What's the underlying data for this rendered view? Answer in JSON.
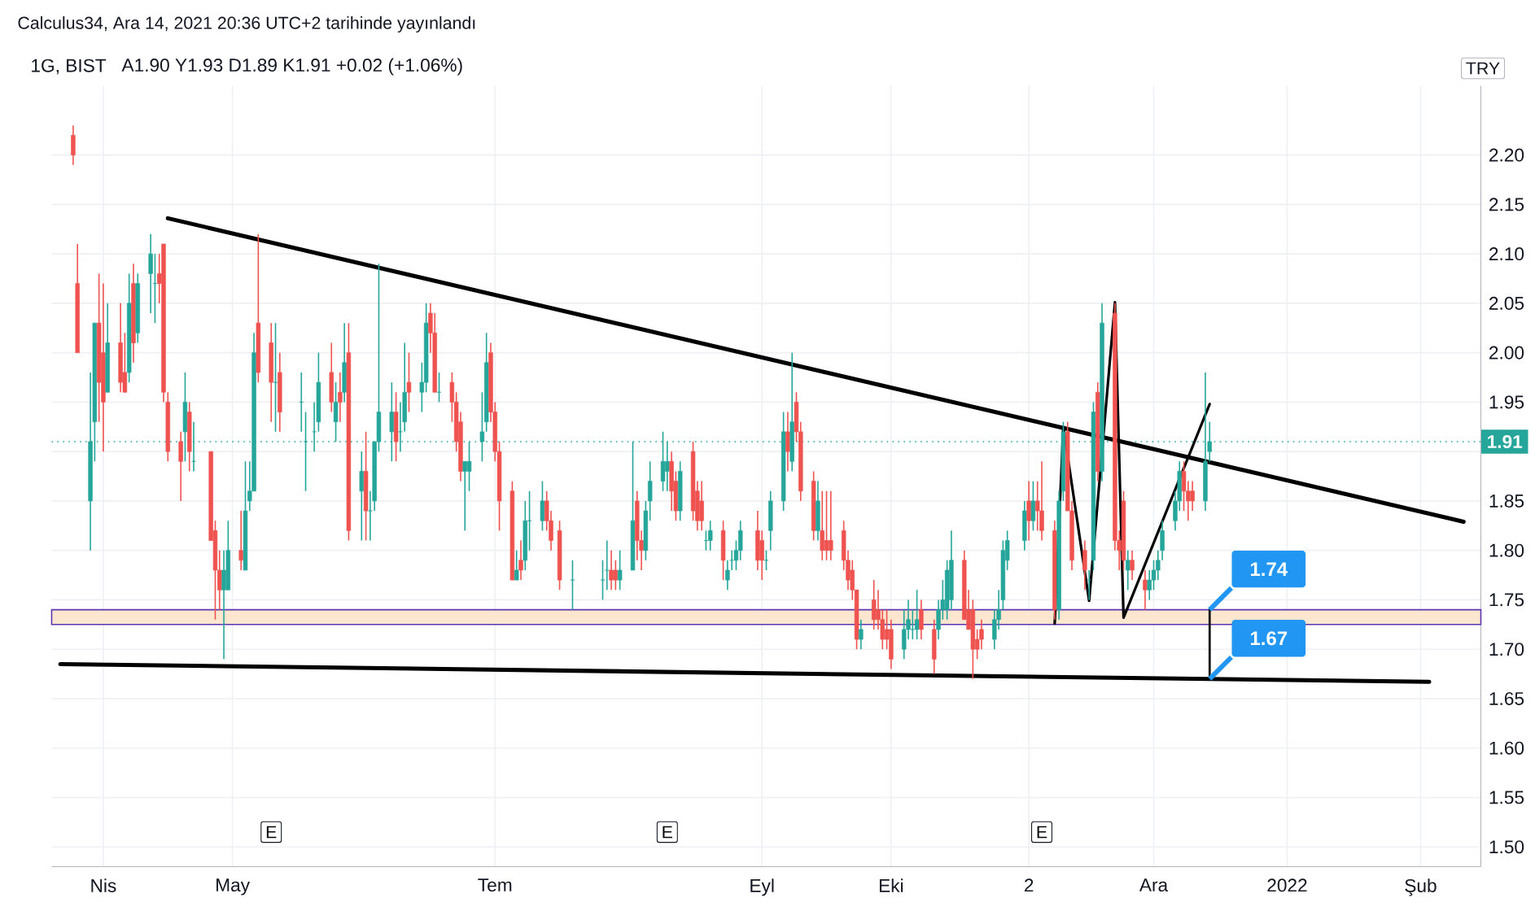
{
  "chart_data": {
    "type": "candlestick",
    "title": "1G, BIST",
    "subtitle": "A1.90 Y1.93 D1.89 K1.91 +0.02 (+1.06%)",
    "x": [
      "2021-03-25",
      "2021-03-26",
      "2021-03-29",
      "2021-03-30",
      "2021-03-31",
      "2021-04-01",
      "2021-04-02",
      "2021-04-05",
      "2021-04-06",
      "2021-04-07",
      "2021-04-08",
      "2021-04-09",
      "2021-04-12",
      "2021-04-13",
      "2021-04-14",
      "2021-04-15",
      "2021-04-16",
      "2021-04-19",
      "2021-04-20",
      "2021-04-21",
      "2021-04-22",
      "2021-04-26",
      "2021-04-27",
      "2021-04-28",
      "2021-04-29",
      "2021-04-30",
      "2021-05-03",
      "2021-05-04",
      "2021-05-05",
      "2021-05-06",
      "2021-05-07",
      "2021-05-10",
      "2021-05-11",
      "2021-05-12",
      "2021-05-17",
      "2021-05-18",
      "2021-05-20",
      "2021-05-21",
      "2021-05-24",
      "2021-05-25",
      "2021-05-26",
      "2021-05-27",
      "2021-05-28",
      "2021-05-31",
      "2021-06-01",
      "2021-06-02",
      "2021-06-03",
      "2021-06-04",
      "2021-06-07",
      "2021-06-08",
      "2021-06-09",
      "2021-06-10",
      "2021-06-11",
      "2021-06-14",
      "2021-06-15",
      "2021-06-16",
      "2021-06-17",
      "2021-06-18",
      "2021-06-21",
      "2021-06-22",
      "2021-06-23",
      "2021-06-24",
      "2021-06-25",
      "2021-06-28",
      "2021-06-29",
      "2021-06-30",
      "2021-07-01",
      "2021-07-02",
      "2021-07-05",
      "2021-07-06",
      "2021-07-07",
      "2021-07-08",
      "2021-07-09",
      "2021-07-12",
      "2021-07-13",
      "2021-07-14",
      "2021-07-16",
      "2021-07-19",
      "2021-07-26",
      "2021-07-27",
      "2021-07-28",
      "2021-07-29",
      "2021-07-30",
      "2021-08-02",
      "2021-08-03",
      "2021-08-04",
      "2021-08-05",
      "2021-08-06",
      "2021-08-09",
      "2021-08-10",
      "2021-08-11",
      "2021-08-12",
      "2021-08-13",
      "2021-08-16",
      "2021-08-17",
      "2021-08-18",
      "2021-08-19",
      "2021-08-20",
      "2021-08-23",
      "2021-08-24",
      "2021-08-25",
      "2021-08-26",
      "2021-08-27",
      "2021-08-31",
      "2021-09-01",
      "2021-09-02",
      "2021-09-03",
      "2021-09-06",
      "2021-09-07",
      "2021-09-08",
      "2021-09-09",
      "2021-09-10",
      "2021-09-13",
      "2021-09-14",
      "2021-09-15",
      "2021-09-16",
      "2021-09-17",
      "2021-09-20",
      "2021-09-21",
      "2021-09-22",
      "2021-09-23",
      "2021-09-24",
      "2021-09-27",
      "2021-09-28",
      "2021-09-29",
      "2021-09-30",
      "2021-10-01",
      "2021-10-04",
      "2021-10-05",
      "2021-10-06",
      "2021-10-07",
      "2021-10-08",
      "2021-10-11",
      "2021-10-12",
      "2021-10-13",
      "2021-10-14",
      "2021-10-15",
      "2021-10-18",
      "2021-10-19",
      "2021-10-20",
      "2021-10-21",
      "2021-10-22",
      "2021-10-25",
      "2021-10-26",
      "2021-10-27",
      "2021-10-28",
      "2021-11-01",
      "2021-11-02",
      "2021-11-03",
      "2021-11-04",
      "2021-11-05",
      "2021-11-08",
      "2021-11-09",
      "2021-11-10",
      "2021-11-11",
      "2021-11-12",
      "2021-11-15",
      "2021-11-16",
      "2021-11-17",
      "2021-11-18",
      "2021-11-19",
      "2021-11-22",
      "2021-11-23",
      "2021-11-24",
      "2021-11-25",
      "2021-11-26",
      "2021-11-29",
      "2021-11-30",
      "2021-12-01",
      "2021-12-02",
      "2021-12-03",
      "2021-12-06",
      "2021-12-07",
      "2021-12-08",
      "2021-12-09",
      "2021-12-10",
      "2021-12-13",
      "2021-12-14"
    ],
    "ohlc": [
      [
        2.22,
        2.23,
        2.19,
        2.2
      ],
      [
        2.07,
        2.11,
        2.0,
        2.0
      ],
      [
        1.85,
        1.98,
        1.8,
        1.91
      ],
      [
        1.93,
        2.03,
        1.89,
        2.03
      ],
      [
        2.03,
        2.08,
        1.93,
        1.97
      ],
      [
        2.0,
        2.07,
        1.9,
        1.95
      ],
      [
        1.96,
        2.05,
        1.96,
        2.01
      ],
      [
        2.01,
        2.05,
        1.96,
        1.97
      ],
      [
        1.98,
        2.02,
        1.96,
        1.96
      ],
      [
        1.98,
        2.08,
        1.97,
        2.05
      ],
      [
        2.07,
        2.09,
        1.99,
        2.01
      ],
      [
        2.02,
        2.08,
        2.01,
        2.07
      ],
      [
        2.08,
        2.12,
        2.04,
        2.1
      ],
      [
        2.07,
        2.1,
        2.03,
        2.07
      ],
      [
        2.08,
        2.1,
        2.05,
        2.07
      ],
      [
        2.11,
        2.11,
        1.95,
        1.96
      ],
      [
        1.95,
        1.96,
        1.89,
        1.9
      ],
      [
        1.91,
        1.92,
        1.85,
        1.89
      ],
      [
        1.92,
        1.98,
        1.89,
        1.95
      ],
      [
        1.94,
        1.95,
        1.88,
        1.9
      ],
      [
        1.89,
        1.93,
        1.88,
        1.89
      ],
      [
        1.9,
        1.9,
        1.81,
        1.81
      ],
      [
        1.82,
        1.83,
        1.73,
        1.78
      ],
      [
        1.78,
        1.8,
        1.74,
        1.76
      ],
      [
        1.76,
        1.8,
        1.69,
        1.78
      ],
      [
        1.76,
        1.83,
        1.76,
        1.8
      ],
      [
        1.8,
        1.84,
        1.78,
        1.79
      ],
      [
        1.78,
        1.89,
        1.78,
        1.84
      ],
      [
        1.85,
        1.89,
        1.84,
        1.86
      ],
      [
        1.86,
        2.02,
        1.86,
        2.0
      ],
      [
        2.03,
        2.12,
        1.97,
        1.98
      ],
      [
        2.01,
        2.03,
        1.93,
        1.97
      ],
      [
        1.97,
        2.03,
        1.92,
        1.97
      ],
      [
        1.98,
        2.0,
        1.92,
        1.94
      ],
      [
        1.95,
        1.98,
        1.92,
        1.95
      ],
      [
        1.91,
        1.94,
        1.86,
        1.91
      ],
      [
        1.92,
        1.95,
        1.9,
        1.92
      ],
      [
        1.93,
        2.0,
        1.92,
        1.97
      ],
      [
        1.98,
        2.01,
        1.94,
        1.95
      ],
      [
        1.93,
        1.97,
        1.91,
        1.95
      ],
      [
        1.96,
        1.98,
        1.93,
        1.95
      ],
      [
        1.96,
        2.03,
        1.95,
        1.99
      ],
      [
        2.0,
        2.03,
        1.81,
        1.82
      ],
      [
        1.86,
        1.9,
        1.81,
        1.88
      ],
      [
        1.88,
        1.92,
        1.81,
        1.84
      ],
      [
        1.84,
        1.86,
        1.81,
        1.84
      ],
      [
        1.85,
        1.91,
        1.84,
        1.91
      ],
      [
        1.91,
        2.09,
        1.9,
        1.94
      ],
      [
        1.92,
        1.97,
        1.89,
        1.94
      ],
      [
        1.94,
        1.96,
        1.89,
        1.91
      ],
      [
        1.92,
        1.95,
        1.9,
        1.92
      ],
      [
        1.93,
        2.01,
        1.92,
        1.96
      ],
      [
        1.97,
        2.0,
        1.94,
        1.96
      ],
      [
        1.96,
        1.99,
        1.94,
        1.97
      ],
      [
        1.97,
        2.05,
        1.96,
        2.03
      ],
      [
        2.04,
        2.05,
        2.0,
        2.02
      ],
      [
        2.02,
        2.04,
        1.96,
        1.96
      ],
      [
        1.96,
        1.98,
        1.95,
        1.96
      ],
      [
        1.97,
        1.98,
        1.93,
        1.95
      ],
      [
        1.95,
        1.96,
        1.9,
        1.91
      ],
      [
        1.93,
        1.94,
        1.87,
        1.88
      ],
      [
        1.88,
        1.89,
        1.82,
        1.89
      ],
      [
        1.88,
        1.91,
        1.86,
        1.89
      ],
      [
        1.91,
        1.96,
        1.89,
        1.92
      ],
      [
        1.93,
        2.02,
        1.92,
        1.99
      ],
      [
        2.0,
        2.01,
        1.93,
        1.94
      ],
      [
        1.94,
        1.95,
        1.89,
        1.9
      ],
      [
        1.9,
        1.91,
        1.82,
        1.85
      ],
      [
        1.86,
        1.87,
        1.77,
        1.77
      ],
      [
        1.77,
        1.8,
        1.77,
        1.78
      ],
      [
        1.79,
        1.81,
        1.77,
        1.78
      ],
      [
        1.79,
        1.85,
        1.78,
        1.83
      ],
      [
        1.83,
        1.86,
        1.8,
        1.83
      ],
      [
        1.83,
        1.87,
        1.82,
        1.85
      ],
      [
        1.85,
        1.86,
        1.82,
        1.83
      ],
      [
        1.83,
        1.84,
        1.8,
        1.81
      ],
      [
        1.82,
        1.83,
        1.76,
        1.77
      ],
      [
        1.77,
        1.79,
        1.74,
        1.77
      ],
      [
        1.77,
        1.79,
        1.75,
        1.77
      ],
      [
        1.78,
        1.81,
        1.76,
        1.78
      ],
      [
        1.78,
        1.8,
        1.76,
        1.77
      ],
      [
        1.78,
        1.79,
        1.76,
        1.77
      ],
      [
        1.77,
        1.8,
        1.76,
        1.78
      ],
      [
        1.78,
        1.91,
        1.78,
        1.83
      ],
      [
        1.85,
        1.86,
        1.79,
        1.81
      ],
      [
        1.81,
        1.82,
        1.78,
        1.8
      ],
      [
        1.8,
        1.85,
        1.79,
        1.84
      ],
      [
        1.85,
        1.89,
        1.83,
        1.87
      ],
      [
        1.87,
        1.92,
        1.86,
        1.89
      ],
      [
        1.88,
        1.91,
        1.86,
        1.89
      ],
      [
        1.89,
        1.9,
        1.84,
        1.86
      ],
      [
        1.87,
        1.88,
        1.83,
        1.84
      ],
      [
        1.84,
        1.89,
        1.83,
        1.88
      ],
      [
        1.9,
        1.91,
        1.83,
        1.84
      ],
      [
        1.86,
        1.87,
        1.82,
        1.83
      ],
      [
        1.85,
        1.87,
        1.82,
        1.83
      ],
      [
        1.81,
        1.82,
        1.8,
        1.81
      ],
      [
        1.81,
        1.83,
        1.8,
        1.82
      ],
      [
        1.82,
        1.83,
        1.77,
        1.79
      ],
      [
        1.77,
        1.79,
        1.76,
        1.78
      ],
      [
        1.79,
        1.8,
        1.78,
        1.79
      ],
      [
        1.79,
        1.81,
        1.78,
        1.8
      ],
      [
        1.8,
        1.83,
        1.79,
        1.82
      ],
      [
        1.82,
        1.84,
        1.78,
        1.79
      ],
      [
        1.81,
        1.82,
        1.77,
        1.79
      ],
      [
        1.79,
        1.8,
        1.78,
        1.79
      ],
      [
        1.82,
        1.86,
        1.8,
        1.85
      ],
      [
        1.85,
        1.94,
        1.84,
        1.92
      ],
      [
        1.92,
        1.94,
        1.88,
        1.9
      ],
      [
        1.89,
        2.0,
        1.88,
        1.93
      ],
      [
        1.95,
        1.96,
        1.91,
        1.92
      ],
      [
        1.92,
        1.93,
        1.85,
        1.86
      ],
      [
        1.87,
        1.88,
        1.81,
        1.82
      ],
      [
        1.82,
        1.87,
        1.81,
        1.85
      ],
      [
        1.82,
        1.86,
        1.79,
        1.8
      ],
      [
        1.81,
        1.86,
        1.79,
        1.8
      ],
      [
        1.81,
        1.86,
        1.79,
        1.8
      ],
      [
        1.82,
        1.83,
        1.78,
        1.79
      ],
      [
        1.79,
        1.8,
        1.76,
        1.77
      ],
      [
        1.78,
        1.79,
        1.75,
        1.76
      ],
      [
        1.76,
        1.76,
        1.7,
        1.71
      ],
      [
        1.71,
        1.73,
        1.7,
        1.72
      ],
      [
        1.75,
        1.77,
        1.72,
        1.73
      ],
      [
        1.74,
        1.76,
        1.72,
        1.73
      ],
      [
        1.73,
        1.74,
        1.7,
        1.71
      ],
      [
        1.72,
        1.74,
        1.7,
        1.71
      ],
      [
        1.72,
        1.73,
        1.68,
        1.69
      ],
      [
        1.7,
        1.74,
        1.69,
        1.72
      ],
      [
        1.72,
        1.75,
        1.71,
        1.73
      ],
      [
        1.72,
        1.74,
        1.71,
        1.72
      ],
      [
        1.72,
        1.76,
        1.71,
        1.73
      ],
      [
        1.74,
        1.75,
        1.71,
        1.72
      ],
      [
        1.72,
        1.73,
        1.675,
        1.69
      ],
      [
        1.72,
        1.75,
        1.71,
        1.74
      ],
      [
        1.74,
        1.77,
        1.73,
        1.75
      ],
      [
        1.74,
        1.79,
        1.73,
        1.78
      ],
      [
        1.75,
        1.82,
        1.74,
        1.79
      ],
      [
        1.79,
        1.8,
        1.73,
        1.73
      ],
      [
        1.74,
        1.76,
        1.72,
        1.72
      ],
      [
        1.74,
        1.75,
        1.67,
        1.7
      ],
      [
        1.71,
        1.72,
        1.69,
        1.7
      ],
      [
        1.72,
        1.73,
        1.7,
        1.71
      ],
      [
        1.71,
        1.74,
        1.7,
        1.73
      ],
      [
        1.73,
        1.76,
        1.72,
        1.74
      ],
      [
        1.75,
        1.81,
        1.74,
        1.8
      ],
      [
        1.79,
        1.82,
        1.78,
        1.81
      ],
      [
        1.81,
        1.85,
        1.8,
        1.84
      ],
      [
        1.85,
        1.87,
        1.81,
        1.83
      ],
      [
        1.83,
        1.87,
        1.82,
        1.85
      ],
      [
        1.85,
        1.87,
        1.82,
        1.84
      ],
      [
        1.84,
        1.89,
        1.81,
        1.82
      ],
      [
        1.82,
        1.83,
        1.73,
        1.74
      ],
      [
        1.74,
        1.86,
        1.73,
        1.85
      ],
      [
        1.86,
        1.93,
        1.85,
        1.92
      ],
      [
        1.92,
        1.93,
        1.84,
        1.84
      ],
      [
        1.84,
        1.85,
        1.78,
        1.79
      ],
      [
        1.8,
        1.81,
        1.76,
        1.78
      ],
      [
        1.77,
        1.78,
        1.75,
        1.77
      ],
      [
        1.79,
        1.95,
        1.78,
        1.94
      ],
      [
        1.96,
        1.97,
        1.87,
        1.88
      ],
      [
        1.88,
        2.05,
        1.87,
        2.03
      ],
      [
        2.04,
        2.05,
        1.8,
        1.81
      ],
      [
        1.81,
        1.82,
        1.78,
        1.8
      ],
      [
        1.85,
        1.86,
        1.78,
        1.79
      ],
      [
        1.78,
        1.8,
        1.76,
        1.79
      ],
      [
        1.79,
        1.8,
        1.77,
        1.78
      ],
      [
        1.77,
        1.78,
        1.74,
        1.76
      ],
      [
        1.76,
        1.78,
        1.75,
        1.77
      ],
      [
        1.77,
        1.79,
        1.76,
        1.78
      ],
      [
        1.78,
        1.8,
        1.77,
        1.79
      ],
      [
        1.8,
        1.83,
        1.79,
        1.82
      ],
      [
        1.83,
        1.86,
        1.82,
        1.85
      ],
      [
        1.85,
        1.89,
        1.84,
        1.88
      ],
      [
        1.88,
        1.89,
        1.84,
        1.86
      ],
      [
        1.86,
        1.87,
        1.83,
        1.85
      ],
      [
        1.86,
        1.87,
        1.84,
        1.85
      ],
      [
        1.85,
        1.98,
        1.84,
        1.89
      ],
      [
        1.9,
        1.93,
        1.89,
        1.91
      ]
    ],
    "series": [
      {
        "type": "line",
        "color": "#000000",
        "x": [
          "2021-04-16",
          "2022-02-11"
        ],
        "values": [
          2.136,
          1.829
        ]
      },
      {
        "type": "line",
        "color": "#000000",
        "x": [
          "2021-03-22",
          "2022-02-03"
        ],
        "values": [
          1.685,
          1.667
        ]
      },
      {
        "type": "line",
        "color": "#000000",
        "x": [
          "2021-11-08",
          "2021-11-10",
          "2021-11-16",
          "2021-11-22",
          "2021-11-24",
          "2021-12-14"
        ],
        "values": [
          1.726,
          1.925,
          1.749,
          2.051,
          1.732,
          1.948
        ]
      },
      {
        "type": "line",
        "color": "#000000",
        "x": [
          "2021-12-14",
          "2021-12-14"
        ],
        "values": [
          1.74,
          1.67
        ]
      }
    ],
    "xlim": [
      "2021-03-20",
      "2022-02-15"
    ],
    "xticks": [
      {
        "value": "2021-04-01",
        "label": "Nis"
      },
      {
        "value": "2021-05-01",
        "label": "May"
      },
      {
        "value": "2021-07-01",
        "label": "Tem"
      },
      {
        "value": "2021-09-01",
        "label": "Eyl"
      },
      {
        "value": "2021-10-01",
        "label": "Eki"
      },
      {
        "value": "2021-11-02",
        "label": "2"
      },
      {
        "value": "2021-12-01",
        "label": "Ara"
      },
      {
        "value": "2022-01-01",
        "label": "2022"
      },
      {
        "value": "2022-02-01",
        "label": "Şub"
      }
    ],
    "ylim": [
      1.48,
      2.27
    ],
    "yticks": [
      {
        "value": 1.5,
        "label": "1.50"
      },
      1.55,
      {
        "value": 1.6,
        "label": "1.60"
      },
      1.65,
      {
        "value": 1.7,
        "label": "1.70"
      },
      1.75,
      {
        "value": 1.8,
        "label": "1.80"
      },
      1.85,
      {
        "value": 1.9,
        "label": null
      },
      1.95,
      {
        "value": 2.0,
        "label": "2.00"
      },
      2.05,
      {
        "value": 2.1,
        "label": "2.10"
      },
      2.15,
      {
        "value": 2.2,
        "label": "2.20"
      }
    ],
    "grid": true,
    "ref_lines": [
      {
        "axis": "y",
        "value": 1.91,
        "label": "1.91",
        "color": "#26a69a",
        "line_style": "dotted"
      }
    ],
    "bands": [
      {
        "axis": "y",
        "from": 1.725,
        "to": 1.74,
        "color": "#fde6cf"
      }
    ],
    "annotations": [
      "Calculus34, Ara 14, 2021 20:36 UTC+2 tarihinde yayınlandı",
      "TRY",
      {
        "text": "E",
        "x": "2021-05-10",
        "y": 1.515
      },
      {
        "text": "E",
        "x": "2021-08-10",
        "y": 1.515
      },
      {
        "text": "E",
        "x": "2021-11-05",
        "y": 1.515
      },
      {
        "text": "1.74",
        "x": "2021-12-14",
        "y": 1.74
      },
      {
        "text": "1.67",
        "x": "2021-12-14",
        "y": 1.67
      }
    ]
  }
}
